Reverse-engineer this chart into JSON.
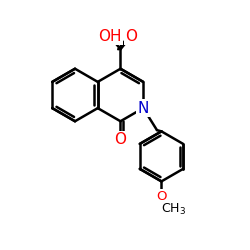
{
  "bg_color": "#ffffff",
  "bond_color": "#000000",
  "bond_width": 1.8,
  "atom_colors": {
    "O": "#ff0000",
    "N": "#0000cc",
    "C": "#000000"
  },
  "figsize": [
    2.5,
    2.5
  ],
  "dpi": 100,
  "xlim": [
    0.0,
    10.0
  ],
  "ylim": [
    0.0,
    10.0
  ]
}
